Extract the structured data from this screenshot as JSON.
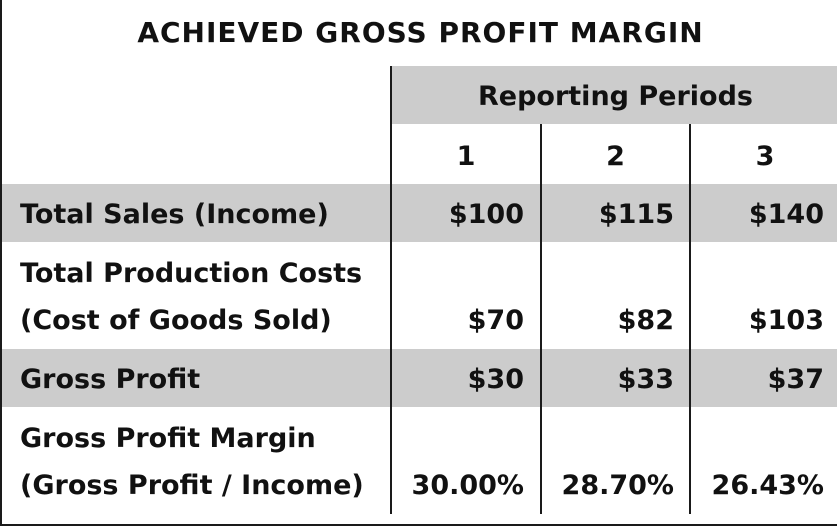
{
  "title": "ACHIEVED GROSS PROFIT MARGIN",
  "header": "Reporting Periods",
  "periods": [
    "1",
    "2",
    "3"
  ],
  "rows": [
    {
      "label1": "Total Sales (Income)",
      "label2": "",
      "values": [
        "$100",
        "$115",
        "$140"
      ]
    },
    {
      "label1": "Total Production Costs",
      "label2": "(Cost of Goods Sold)",
      "values": [
        "$70",
        "$82",
        "$103"
      ]
    },
    {
      "label1": "Gross Profit",
      "label2": "",
      "values": [
        "$30",
        "$33",
        "$37"
      ]
    },
    {
      "label1": "Gross Profit Margin",
      "label2": "(Gross Profit / Income)",
      "values": [
        "30.00%",
        "28.70%",
        "26.43%"
      ]
    }
  ],
  "colors": {
    "band": "#cccccc",
    "text": "#111111",
    "rule": "#1a1a1a"
  }
}
